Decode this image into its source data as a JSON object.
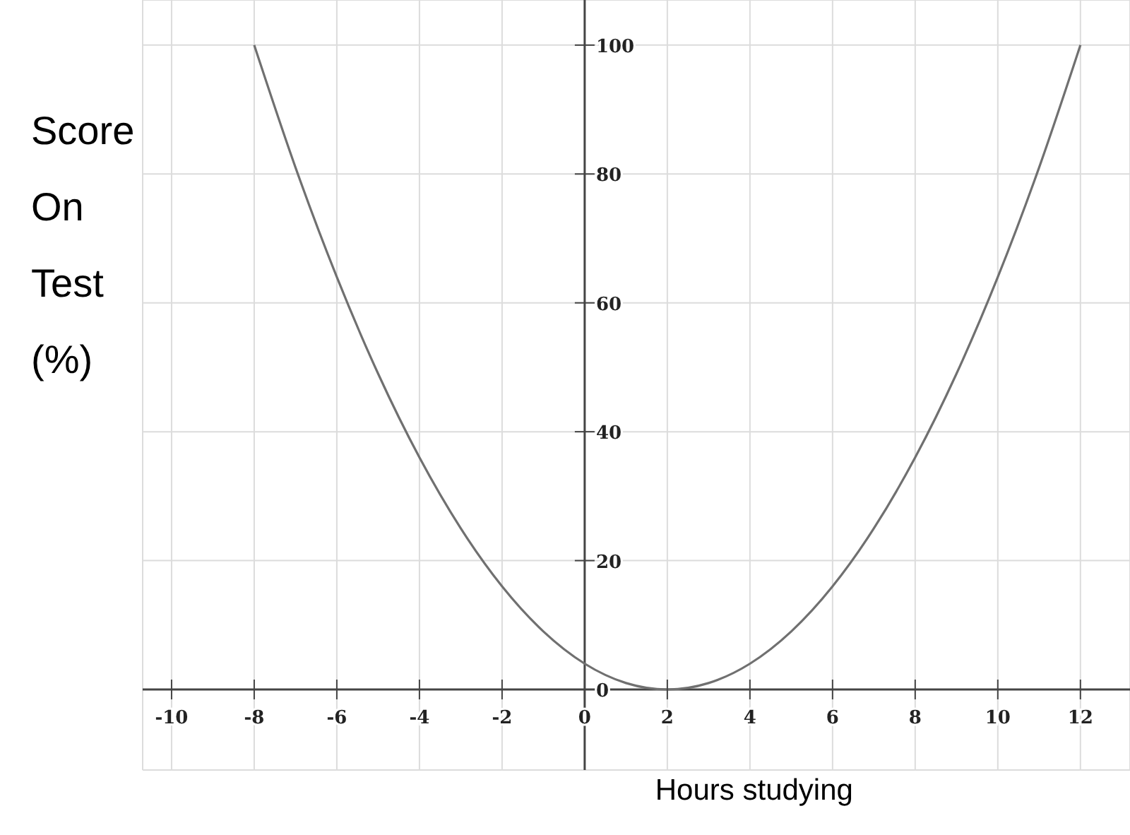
{
  "chart_data": {
    "type": "line",
    "xlabel": "Hours studying",
    "ylabel": "Score On Test (%)",
    "x": [
      -8,
      -7,
      -6,
      -5,
      -4,
      -3,
      -2,
      -1,
      0,
      1,
      2,
      3,
      4,
      5,
      6,
      7,
      8,
      9,
      10,
      11,
      12
    ],
    "series": [
      {
        "color": "#707070",
        "values": [
          100,
          81,
          64,
          49,
          36,
          25,
          16,
          9,
          4,
          1,
          0,
          1,
          4,
          9,
          16,
          25,
          36,
          49,
          64,
          81,
          100
        ]
      }
    ],
    "xlim": [
      -10.7,
      13.2
    ],
    "xticks": [
      -10,
      -8,
      -6,
      -4,
      -2,
      0,
      2,
      4,
      6,
      8,
      10,
      12
    ],
    "ylim": [
      -12.5,
      107
    ],
    "yticks": [
      0,
      20,
      40,
      60,
      80,
      100
    ],
    "grid": true,
    "marker": "none",
    "line_style": "solid",
    "legend": false
  }
}
